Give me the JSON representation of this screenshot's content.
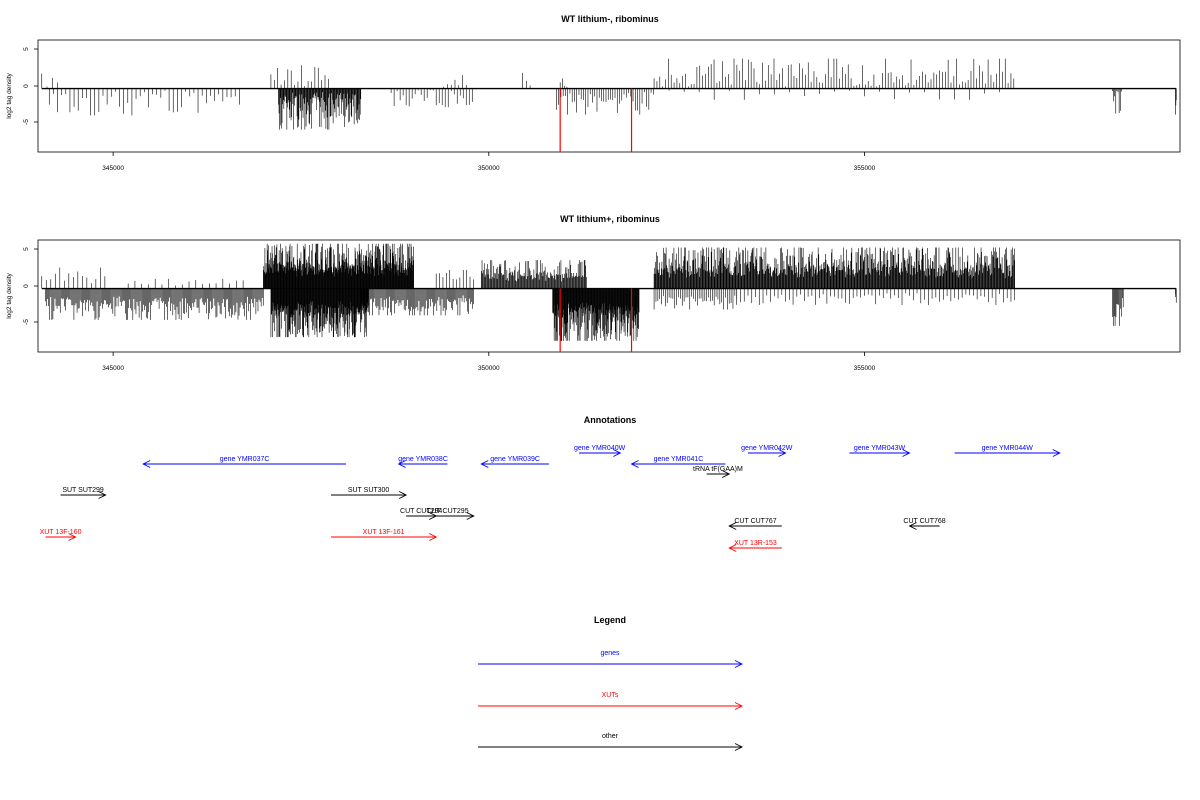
{
  "chart_data": [
    {
      "type": "bar",
      "title": "WT lithium-, ribominus",
      "ylabel": "log2 tag density",
      "xlabel": "",
      "xlim": [
        344000,
        359200
      ],
      "ylim": [
        -8.5,
        6.5
      ],
      "xticks": [
        "345000",
        "350000",
        "355000"
      ],
      "yticks": [
        "5",
        "0",
        "-5"
      ],
      "baseline": {
        "x": [
          344050,
          359150
        ]
      },
      "highlight_color": "#ff0000",
      "highlights": [
        {
          "x": 350950,
          "y": -8.5
        },
        {
          "x": 351900,
          "y": -8.5
        }
      ],
      "track": {
        "base": 0.06,
        "spans": [
          {
            "x": [
              344050,
              344300
            ],
            "step": 70,
            "amp": 2.2,
            "dir": 1,
            "seed": 11
          },
          {
            "x": [
              344150,
              346700
            ],
            "step": 55,
            "amp": 3.6,
            "dir": -1,
            "seed": 12
          },
          {
            "x": [
              347100,
              347900
            ],
            "step": 45,
            "amp": 3.2,
            "dir": 1,
            "seed": 13
          },
          {
            "x": [
              347200,
              348300
            ],
            "step": 8,
            "amp": 5.5,
            "dir": -1,
            "seed": 14
          },
          {
            "x": [
              348700,
              349800
            ],
            "step": 40,
            "amp": 2.5,
            "dir": -1,
            "seed": 15
          },
          {
            "x": [
              349400,
              349700
            ],
            "step": 50,
            "amp": 1.8,
            "dir": 1,
            "seed": 16
          },
          {
            "x": [
              350450,
              350550
            ],
            "step": 50,
            "amp": 2.4,
            "dir": 1,
            "seed": 17
          },
          {
            "x": [
              350900,
              352200
            ],
            "step": 30,
            "amp": 3.5,
            "dir": -1,
            "seed": 18
          },
          {
            "x": [
              350950,
              351050
            ],
            "step": 30,
            "amp": 1.5,
            "dir": 1,
            "seed": 19
          },
          {
            "x": [
              352200,
              357000
            ],
            "step": 38,
            "amp": 4.0,
            "dir": 1,
            "seed": 20
          },
          {
            "x": [
              352400,
              356800
            ],
            "step": 200,
            "amp": 1.5,
            "dir": -1,
            "seed": 21
          },
          {
            "x": [
              358300,
              358420
            ],
            "step": 15,
            "amp": 4.0,
            "dir": -1,
            "seed": 22
          },
          {
            "x": [
              359140,
              359150
            ],
            "step": 5,
            "amp": 3.5,
            "dir": -1,
            "seed": 23
          }
        ]
      }
    },
    {
      "type": "bar",
      "title": "WT lithium+, ribominus",
      "ylabel": "log2 tag density",
      "xlabel": "",
      "xlim": [
        344000,
        359200
      ],
      "ylim": [
        -8.5,
        6.5
      ],
      "xticks": [
        "345000",
        "350000",
        "355000"
      ],
      "yticks": [
        "5",
        "0",
        "-5"
      ],
      "baseline": {
        "x": [
          344050,
          359150
        ]
      },
      "highlight_color": "#ff0000",
      "highlights": [
        {
          "x": 350950,
          "y": -8.5
        },
        {
          "x": 351900,
          "y": -8.5
        }
      ],
      "track": {
        "base": 0.25,
        "spans": [
          {
            "x": [
              344050,
              344900
            ],
            "step": 60,
            "amp": 2.8,
            "dir": 1,
            "seed": 31
          },
          {
            "x": [
              344100,
              347000
            ],
            "step": 14,
            "amp": 4.2,
            "dir": -1,
            "seed": 32
          },
          {
            "x": [
              345200,
              346800
            ],
            "step": 90,
            "amp": 1.3,
            "dir": 1,
            "seed": 33
          },
          {
            "x": [
              347000,
              349000
            ],
            "step": 5,
            "amp": 6.0,
            "dir": 1,
            "seed": 34
          },
          {
            "x": [
              347100,
              348400
            ],
            "step": 5,
            "amp": 6.5,
            "dir": -1,
            "seed": 35
          },
          {
            "x": [
              348300,
              349800
            ],
            "step": 14,
            "amp": 3.6,
            "dir": -1,
            "seed": 36
          },
          {
            "x": [
              349300,
              349800
            ],
            "step": 45,
            "amp": 2.5,
            "dir": 1,
            "seed": 37
          },
          {
            "x": [
              349900,
              351300
            ],
            "step": 10,
            "amp": 3.8,
            "dir": 1,
            "seed": 38
          },
          {
            "x": [
              350850,
              352000
            ],
            "step": 5,
            "amp": 7.0,
            "dir": -1,
            "seed": 39
          },
          {
            "x": [
              352200,
              357000
            ],
            "step": 8,
            "amp": 5.5,
            "dir": 1,
            "seed": 40
          },
          {
            "x": [
              352200,
              353300
            ],
            "step": 25,
            "amp": 2.8,
            "dir": -1,
            "seed": 41
          },
          {
            "x": [
              353300,
              357000
            ],
            "step": 50,
            "amp": 2.2,
            "dir": -1,
            "seed": 42
          },
          {
            "x": [
              358300,
              358450
            ],
            "step": 12,
            "amp": 5.0,
            "dir": -1,
            "seed": 43
          },
          {
            "x": [
              359140,
              359150
            ],
            "step": 5,
            "amp": 2.0,
            "dir": -1,
            "seed": 44
          }
        ]
      }
    }
  ],
  "annotations": {
    "title": "Annotations",
    "xlim": [
      344000,
      359200
    ],
    "colors": {
      "gene": "#0000ff",
      "xut": "#ff0000",
      "other": "#000000"
    },
    "features": [
      {
        "label": "gene YMR037C",
        "kind": "gene",
        "strand": "-",
        "start": 345400,
        "end": 348100,
        "row": 2
      },
      {
        "label": "gene YMR038C",
        "kind": "gene",
        "strand": "-",
        "start": 348800,
        "end": 349450,
        "row": 2
      },
      {
        "label": "gene YMR039C",
        "kind": "gene",
        "strand": "-",
        "start": 349900,
        "end": 350800,
        "row": 2
      },
      {
        "label": "gene YMR040W",
        "kind": "gene",
        "strand": "+",
        "start": 351200,
        "end": 351750,
        "row": 1
      },
      {
        "label": "gene YMR041C",
        "kind": "gene",
        "strand": "-",
        "start": 351900,
        "end": 353150,
        "row": 2
      },
      {
        "label": "gene YMR042W",
        "kind": "gene",
        "strand": "+",
        "start": 353450,
        "end": 353950,
        "row": 1
      },
      {
        "label": "gene YMR043W",
        "kind": "gene",
        "strand": "+",
        "start": 354800,
        "end": 355600,
        "row": 1
      },
      {
        "label": "gene YMR044W",
        "kind": "gene",
        "strand": "+",
        "start": 356200,
        "end": 357600,
        "row": 1
      },
      {
        "label": "tRNA tF(GAA)M",
        "kind": "other",
        "strand": "+",
        "start": 352900,
        "end": 353200,
        "row": 3
      },
      {
        "label": "SUT SUT299",
        "kind": "other",
        "strand": "+",
        "start": 344300,
        "end": 344900,
        "row": 4
      },
      {
        "label": "SUT SUT300",
        "kind": "other",
        "strand": "+",
        "start": 347900,
        "end": 348900,
        "row": 4
      },
      {
        "label": "CUT CUT294",
        "kind": "other",
        "strand": "+",
        "start": 348900,
        "end": 349300,
        "row": 5
      },
      {
        "label": "CUT CUT295",
        "kind": "other",
        "strand": "+",
        "start": 349100,
        "end": 349800,
        "row": 5
      },
      {
        "label": "CUT CUT767",
        "kind": "other",
        "strand": "-",
        "start": 353200,
        "end": 353900,
        "row": 6
      },
      {
        "label": "CUT CUT768",
        "kind": "other",
        "strand": "-",
        "start": 355600,
        "end": 356000,
        "row": 6
      },
      {
        "label": "XUT 13F-160",
        "kind": "xut",
        "strand": "+",
        "start": 344100,
        "end": 344500,
        "row": 7
      },
      {
        "label": "XUT 13F-161",
        "kind": "xut",
        "strand": "+",
        "start": 347900,
        "end": 349300,
        "row": 7
      },
      {
        "label": "XUT 13R-153",
        "kind": "xut",
        "strand": "-",
        "start": 353200,
        "end": 353900,
        "row": 8
      }
    ]
  },
  "legend": {
    "title": "Legend",
    "items": [
      {
        "label": "genes",
        "color": "#0000ff"
      },
      {
        "label": "XUTs",
        "color": "#ff0000"
      },
      {
        "label": "other",
        "color": "#000000"
      }
    ]
  }
}
